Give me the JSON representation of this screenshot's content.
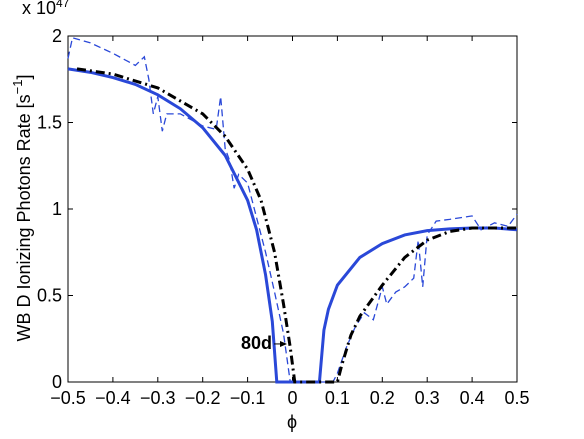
{
  "chart_data": {
    "type": "line",
    "xlabel": "ϕ",
    "ylabel": "WB D Ionizing Photons Rate [s",
    "ylabel_sup": "−1",
    "ylabel_end": "]",
    "multiplier": "x 10",
    "multiplier_exp": "47",
    "annotation": {
      "text": "80d",
      "x": -0.01,
      "y": 0.22
    },
    "xlim": [
      -0.5,
      0.5
    ],
    "ylim": [
      0,
      2
    ],
    "xticks": [
      {
        "value": -0.5,
        "label": "−0.5"
      },
      {
        "value": -0.4,
        "label": "−0.4"
      },
      {
        "value": -0.3,
        "label": "−0.3"
      },
      {
        "value": -0.2,
        "label": "−0.2"
      },
      {
        "value": -0.1,
        "label": "−0.1"
      },
      0,
      0.1,
      0.2,
      0.3,
      0.4,
      0.5
    ],
    "yticks": [
      0,
      0.5,
      1,
      1.5,
      2
    ],
    "series": [
      {
        "color": "#2a48d8",
        "style": "solid",
        "x": [
          -0.5,
          -0.45,
          -0.4,
          -0.35,
          -0.3,
          -0.25,
          -0.2,
          -0.15,
          -0.1,
          -0.08,
          -0.06,
          -0.045,
          -0.035,
          0.06,
          0.07,
          0.08,
          0.1,
          0.15,
          0.2,
          0.25,
          0.3,
          0.35,
          0.4,
          0.45,
          0.5
        ],
        "values": [
          1.81,
          1.79,
          1.76,
          1.72,
          1.66,
          1.58,
          1.47,
          1.31,
          1.05,
          0.88,
          0.62,
          0.35,
          0,
          0,
          0.3,
          0.42,
          0.56,
          0.72,
          0.8,
          0.85,
          0.875,
          0.885,
          0.89,
          0.89,
          0.88
        ]
      },
      {
        "color": "#2a48d8",
        "style": "dashed",
        "x": [
          -0.5,
          -0.49,
          -0.45,
          -0.4,
          -0.35,
          -0.33,
          -0.32,
          -0.31,
          -0.3,
          -0.29,
          -0.28,
          -0.25,
          -0.2,
          -0.17,
          -0.16,
          -0.15,
          -0.14,
          -0.13,
          -0.12,
          -0.1,
          -0.08,
          -0.06,
          -0.04,
          -0.02,
          -0.005,
          0.09,
          0.1,
          0.12,
          0.14,
          0.16,
          0.18,
          0.2,
          0.21,
          0.23,
          0.25,
          0.27,
          0.28,
          0.29,
          0.3,
          0.32,
          0.35,
          0.4,
          0.42,
          0.45,
          0.48,
          0.5
        ],
        "values": [
          1.87,
          1.99,
          1.96,
          1.9,
          1.83,
          1.88,
          1.75,
          1.55,
          1.65,
          1.45,
          1.55,
          1.55,
          1.48,
          1.46,
          1.65,
          1.35,
          1.28,
          1.12,
          1.2,
          1.15,
          0.95,
          0.75,
          0.52,
          0.28,
          0,
          0,
          0.05,
          0.2,
          0.32,
          0.4,
          0.36,
          0.55,
          0.45,
          0.52,
          0.55,
          0.6,
          0.82,
          0.55,
          0.85,
          0.93,
          0.94,
          0.96,
          0.88,
          0.92,
          0.9,
          0.97
        ]
      },
      {
        "color": "#000000",
        "style": "dashdot",
        "x": [
          -0.48,
          -0.4,
          -0.3,
          -0.2,
          -0.15,
          -0.1,
          -0.07,
          -0.04,
          -0.02,
          -0.005,
          0.005,
          0.1,
          0.11,
          0.13,
          0.15,
          0.2,
          0.25,
          0.3,
          0.35,
          0.4,
          0.45,
          0.5
        ],
        "values": [
          1.81,
          1.78,
          1.7,
          1.55,
          1.42,
          1.23,
          1.05,
          0.75,
          0.45,
          0.2,
          0,
          0,
          0.1,
          0.27,
          0.38,
          0.56,
          0.72,
          0.82,
          0.87,
          0.89,
          0.89,
          0.89
        ]
      }
    ]
  }
}
